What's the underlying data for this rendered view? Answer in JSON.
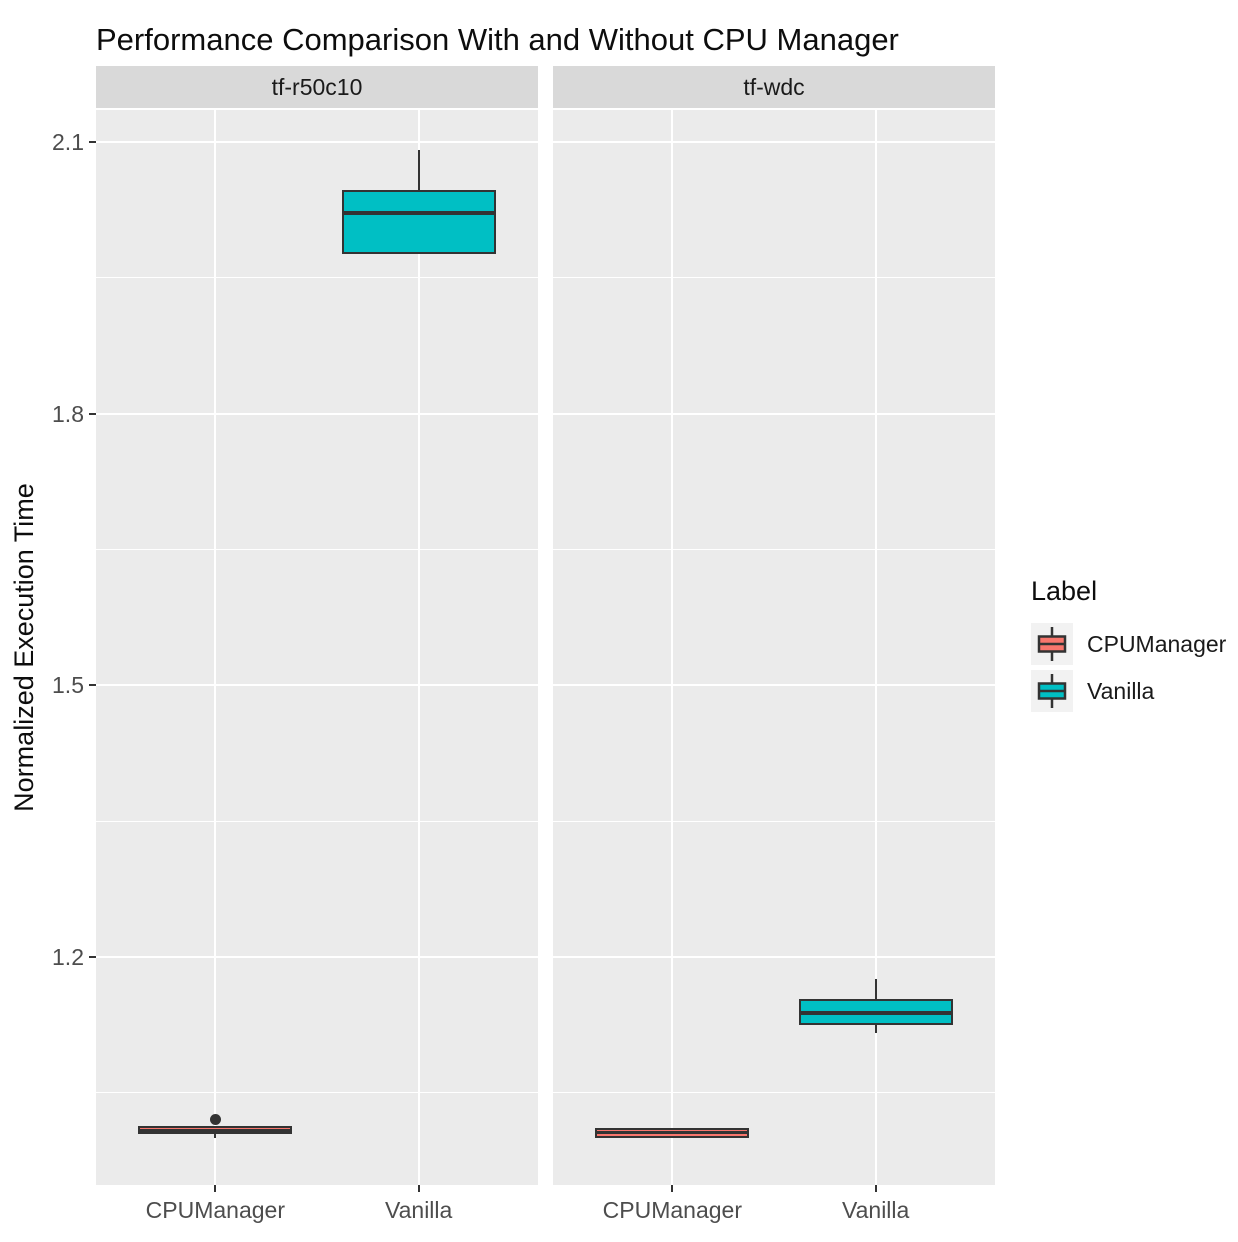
{
  "chart_data": {
    "type": "boxplot",
    "title": "Performance Comparison With and Without CPU Manager",
    "ylabel": "Normalized Execution Time",
    "xlabel": "",
    "facets": [
      "tf-r50c10",
      "tf-wdc"
    ],
    "categories": [
      "CPUManager",
      "Vanilla"
    ],
    "y_ticks_major": [
      2.1,
      1.8,
      1.5,
      1.2
    ],
    "y_ticks_minor": [
      1.95,
      1.65,
      1.35,
      1.05
    ],
    "y_range_shown": [
      0.948,
      2.135
    ],
    "grid": true,
    "legend": {
      "title": "Label",
      "position": "right",
      "entries": [
        {
          "label": "CPUManager",
          "color": "#F8766D"
        },
        {
          "label": "Vanilla",
          "color": "#00BFC4"
        }
      ]
    },
    "panels": [
      {
        "facet_label": "tf-r50c10",
        "boxes": [
          {
            "category": "CPUManager",
            "series": "CPUManager",
            "color": "#F8766D",
            "min": 1.0,
            "q1": 1.005,
            "median": 1.009,
            "q3": 1.013,
            "max": 1.013,
            "outliers": [
              1.021
            ]
          },
          {
            "category": "Vanilla",
            "series": "Vanilla",
            "color": "#00BFC4",
            "min": 1.976,
            "q1": 1.976,
            "median": 2.022,
            "q3": 2.047,
            "max": 2.091,
            "outliers": []
          }
        ]
      },
      {
        "facet_label": "tf-wdc",
        "boxes": [
          {
            "category": "CPUManager",
            "series": "CPUManager",
            "color": "#F8766D",
            "min": 1.0,
            "q1": 1.0,
            "median": 1.006,
            "q3": 1.011,
            "max": 1.011,
            "outliers": []
          },
          {
            "category": "Vanilla",
            "series": "Vanilla",
            "color": "#00BFC4",
            "min": 1.116,
            "q1": 1.125,
            "median": 1.138,
            "q3": 1.154,
            "max": 1.176,
            "outliers": []
          }
        ]
      }
    ],
    "colors": {
      "panel_background": "#EBEBEB",
      "strip_background": "#D9D9D9",
      "gridline": "#FFFFFF",
      "tick_text": "#4D4D4D",
      "box_outline": "#333333",
      "cpumanager_fill": "#F8766D",
      "vanilla_fill": "#00BFC4"
    }
  }
}
